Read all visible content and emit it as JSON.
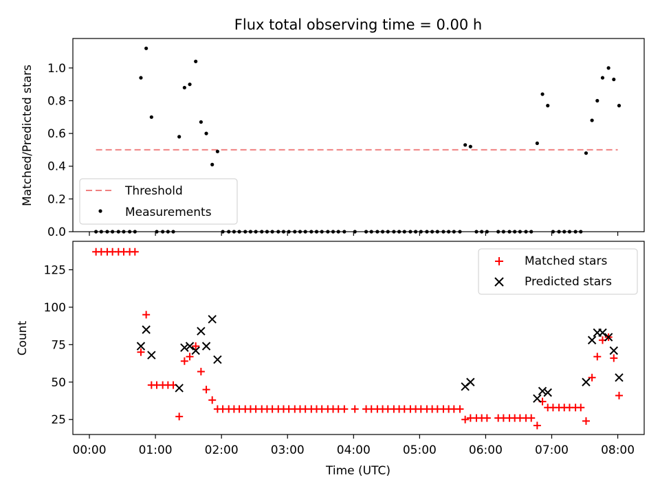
{
  "figure_title": "Flux total observing time = 0.00 h",
  "chart_data": [
    {
      "type": "scatter",
      "title": "Flux total observing time = 0.00 h",
      "xlabel": "",
      "ylabel": "Matched/Predicted stars",
      "xlim": [
        -0.25,
        8.4
      ],
      "ylim": [
        0,
        1.18
      ],
      "yticks": [
        0.0,
        0.2,
        0.4,
        0.6,
        0.8,
        1.0
      ],
      "ytick_labels": [
        "0.0",
        "0.2",
        "0.4",
        "0.6",
        "0.8",
        "1.0"
      ],
      "xticks": [
        0,
        1,
        2,
        3,
        4,
        5,
        6,
        7,
        8
      ],
      "legend_position": "lower-left",
      "threshold": {
        "name": "Threshold",
        "value": 0.5,
        "x": [
          0.1,
          8.0
        ],
        "color": "#f08080"
      },
      "series": [
        {
          "name": "Measurements",
          "color": "#000000",
          "x": [
            0.78,
            0.86,
            0.94,
            1.36,
            1.44,
            1.52,
            1.61,
            1.69,
            1.77,
            1.86,
            1.94,
            5.69,
            5.77,
            6.78,
            6.86,
            6.94,
            7.52,
            7.61,
            7.69,
            7.77,
            7.86,
            7.94,
            8.02
          ],
          "y": [
            0.94,
            1.12,
            0.7,
            0.58,
            0.88,
            0.9,
            1.04,
            0.67,
            0.6,
            0.41,
            0.49,
            0.53,
            0.52,
            0.54,
            0.84,
            0.77,
            0.48,
            0.68,
            0.8,
            0.94,
            1.0,
            0.93,
            0.77
          ],
          "zero_x": [
            0.1,
            0.18,
            0.27,
            0.35,
            0.44,
            0.52,
            0.61,
            0.69,
            1.02,
            1.11,
            1.19,
            1.27,
            2.02,
            2.11,
            2.19,
            2.27,
            2.36,
            2.44,
            2.52,
            2.61,
            2.69,
            2.77,
            2.86,
            2.94,
            3.02,
            3.11,
            3.19,
            3.27,
            3.36,
            3.44,
            3.52,
            3.61,
            3.69,
            3.77,
            3.86,
            4.02,
            4.19,
            4.27,
            4.36,
            4.44,
            4.52,
            4.61,
            4.69,
            4.77,
            4.86,
            4.94,
            5.02,
            5.11,
            5.19,
            5.27,
            5.36,
            5.44,
            5.52,
            5.61,
            5.86,
            5.94,
            6.02,
            6.19,
            6.27,
            6.36,
            6.44,
            6.52,
            6.61,
            6.69,
            7.02,
            7.11,
            7.19,
            7.27,
            7.36,
            7.44
          ]
        }
      ]
    },
    {
      "type": "scatter",
      "title": "",
      "xlabel": "Time (UTC)",
      "ylabel": "Count",
      "xlim": [
        -0.25,
        8.4
      ],
      "ylim": [
        15,
        144
      ],
      "yticks": [
        25,
        50,
        75,
        100,
        125
      ],
      "ytick_labels": [
        "25",
        "50",
        "75",
        "100",
        "125"
      ],
      "xticks": [
        0,
        1,
        2,
        3,
        4,
        5,
        6,
        7,
        8
      ],
      "xtick_labels": [
        "00:00",
        "01:00",
        "02:00",
        "03:00",
        "04:00",
        "05:00",
        "06:00",
        "07:00",
        "08:00"
      ],
      "legend_position": "upper-right",
      "series": [
        {
          "name": "Matched stars",
          "marker": "plus",
          "color": "#ff0000",
          "x": [
            0.1,
            0.18,
            0.27,
            0.35,
            0.44,
            0.52,
            0.61,
            0.69,
            0.78,
            0.86,
            0.94,
            1.02,
            1.11,
            1.19,
            1.27,
            1.36,
            1.44,
            1.52,
            1.61,
            1.69,
            1.77,
            1.86,
            1.94,
            2.02,
            2.11,
            2.19,
            2.27,
            2.36,
            2.44,
            2.52,
            2.61,
            2.69,
            2.77,
            2.86,
            2.94,
            3.02,
            3.11,
            3.19,
            3.27,
            3.36,
            3.44,
            3.52,
            3.61,
            3.69,
            3.77,
            3.86,
            4.02,
            4.19,
            4.27,
            4.36,
            4.44,
            4.52,
            4.61,
            4.69,
            4.77,
            4.86,
            4.94,
            5.02,
            5.11,
            5.19,
            5.27,
            5.36,
            5.44,
            5.52,
            5.61,
            5.69,
            5.77,
            5.86,
            5.94,
            6.02,
            6.19,
            6.27,
            6.36,
            6.44,
            6.52,
            6.61,
            6.69,
            6.78,
            6.86,
            6.94,
            7.02,
            7.11,
            7.19,
            7.27,
            7.36,
            7.44,
            7.52,
            7.61,
            7.69,
            7.77,
            7.86,
            7.94,
            8.02
          ],
          "y": [
            137,
            137,
            137,
            137,
            137,
            137,
            137,
            137,
            70,
            95,
            48,
            48,
            48,
            48,
            48,
            27,
            64,
            67,
            74,
            57,
            45,
            38,
            32,
            32,
            32,
            32,
            32,
            32,
            32,
            32,
            32,
            32,
            32,
            32,
            32,
            32,
            32,
            32,
            32,
            32,
            32,
            32,
            32,
            32,
            32,
            32,
            32,
            32,
            32,
            32,
            32,
            32,
            32,
            32,
            32,
            32,
            32,
            32,
            32,
            32,
            32,
            32,
            32,
            32,
            32,
            25,
            26,
            26,
            26,
            26,
            26,
            26,
            26,
            26,
            26,
            26,
            26,
            21,
            37,
            33,
            33,
            33,
            33,
            33,
            33,
            33,
            24,
            53,
            67,
            78,
            80,
            66,
            41
          ]
        },
        {
          "name": "Predicted stars",
          "marker": "x",
          "color": "#000000",
          "x": [
            0.78,
            0.86,
            0.94,
            1.36,
            1.44,
            1.52,
            1.61,
            1.69,
            1.77,
            1.86,
            1.94,
            5.69,
            5.77,
            6.78,
            6.86,
            6.94,
            7.52,
            7.61,
            7.69,
            7.77,
            7.86,
            7.94,
            8.02
          ],
          "y": [
            74,
            85,
            68,
            46,
            73,
            74,
            71,
            84,
            74,
            92,
            65,
            47,
            50,
            39,
            44,
            43,
            50,
            78,
            83,
            83,
            80,
            71,
            53
          ]
        }
      ]
    }
  ]
}
